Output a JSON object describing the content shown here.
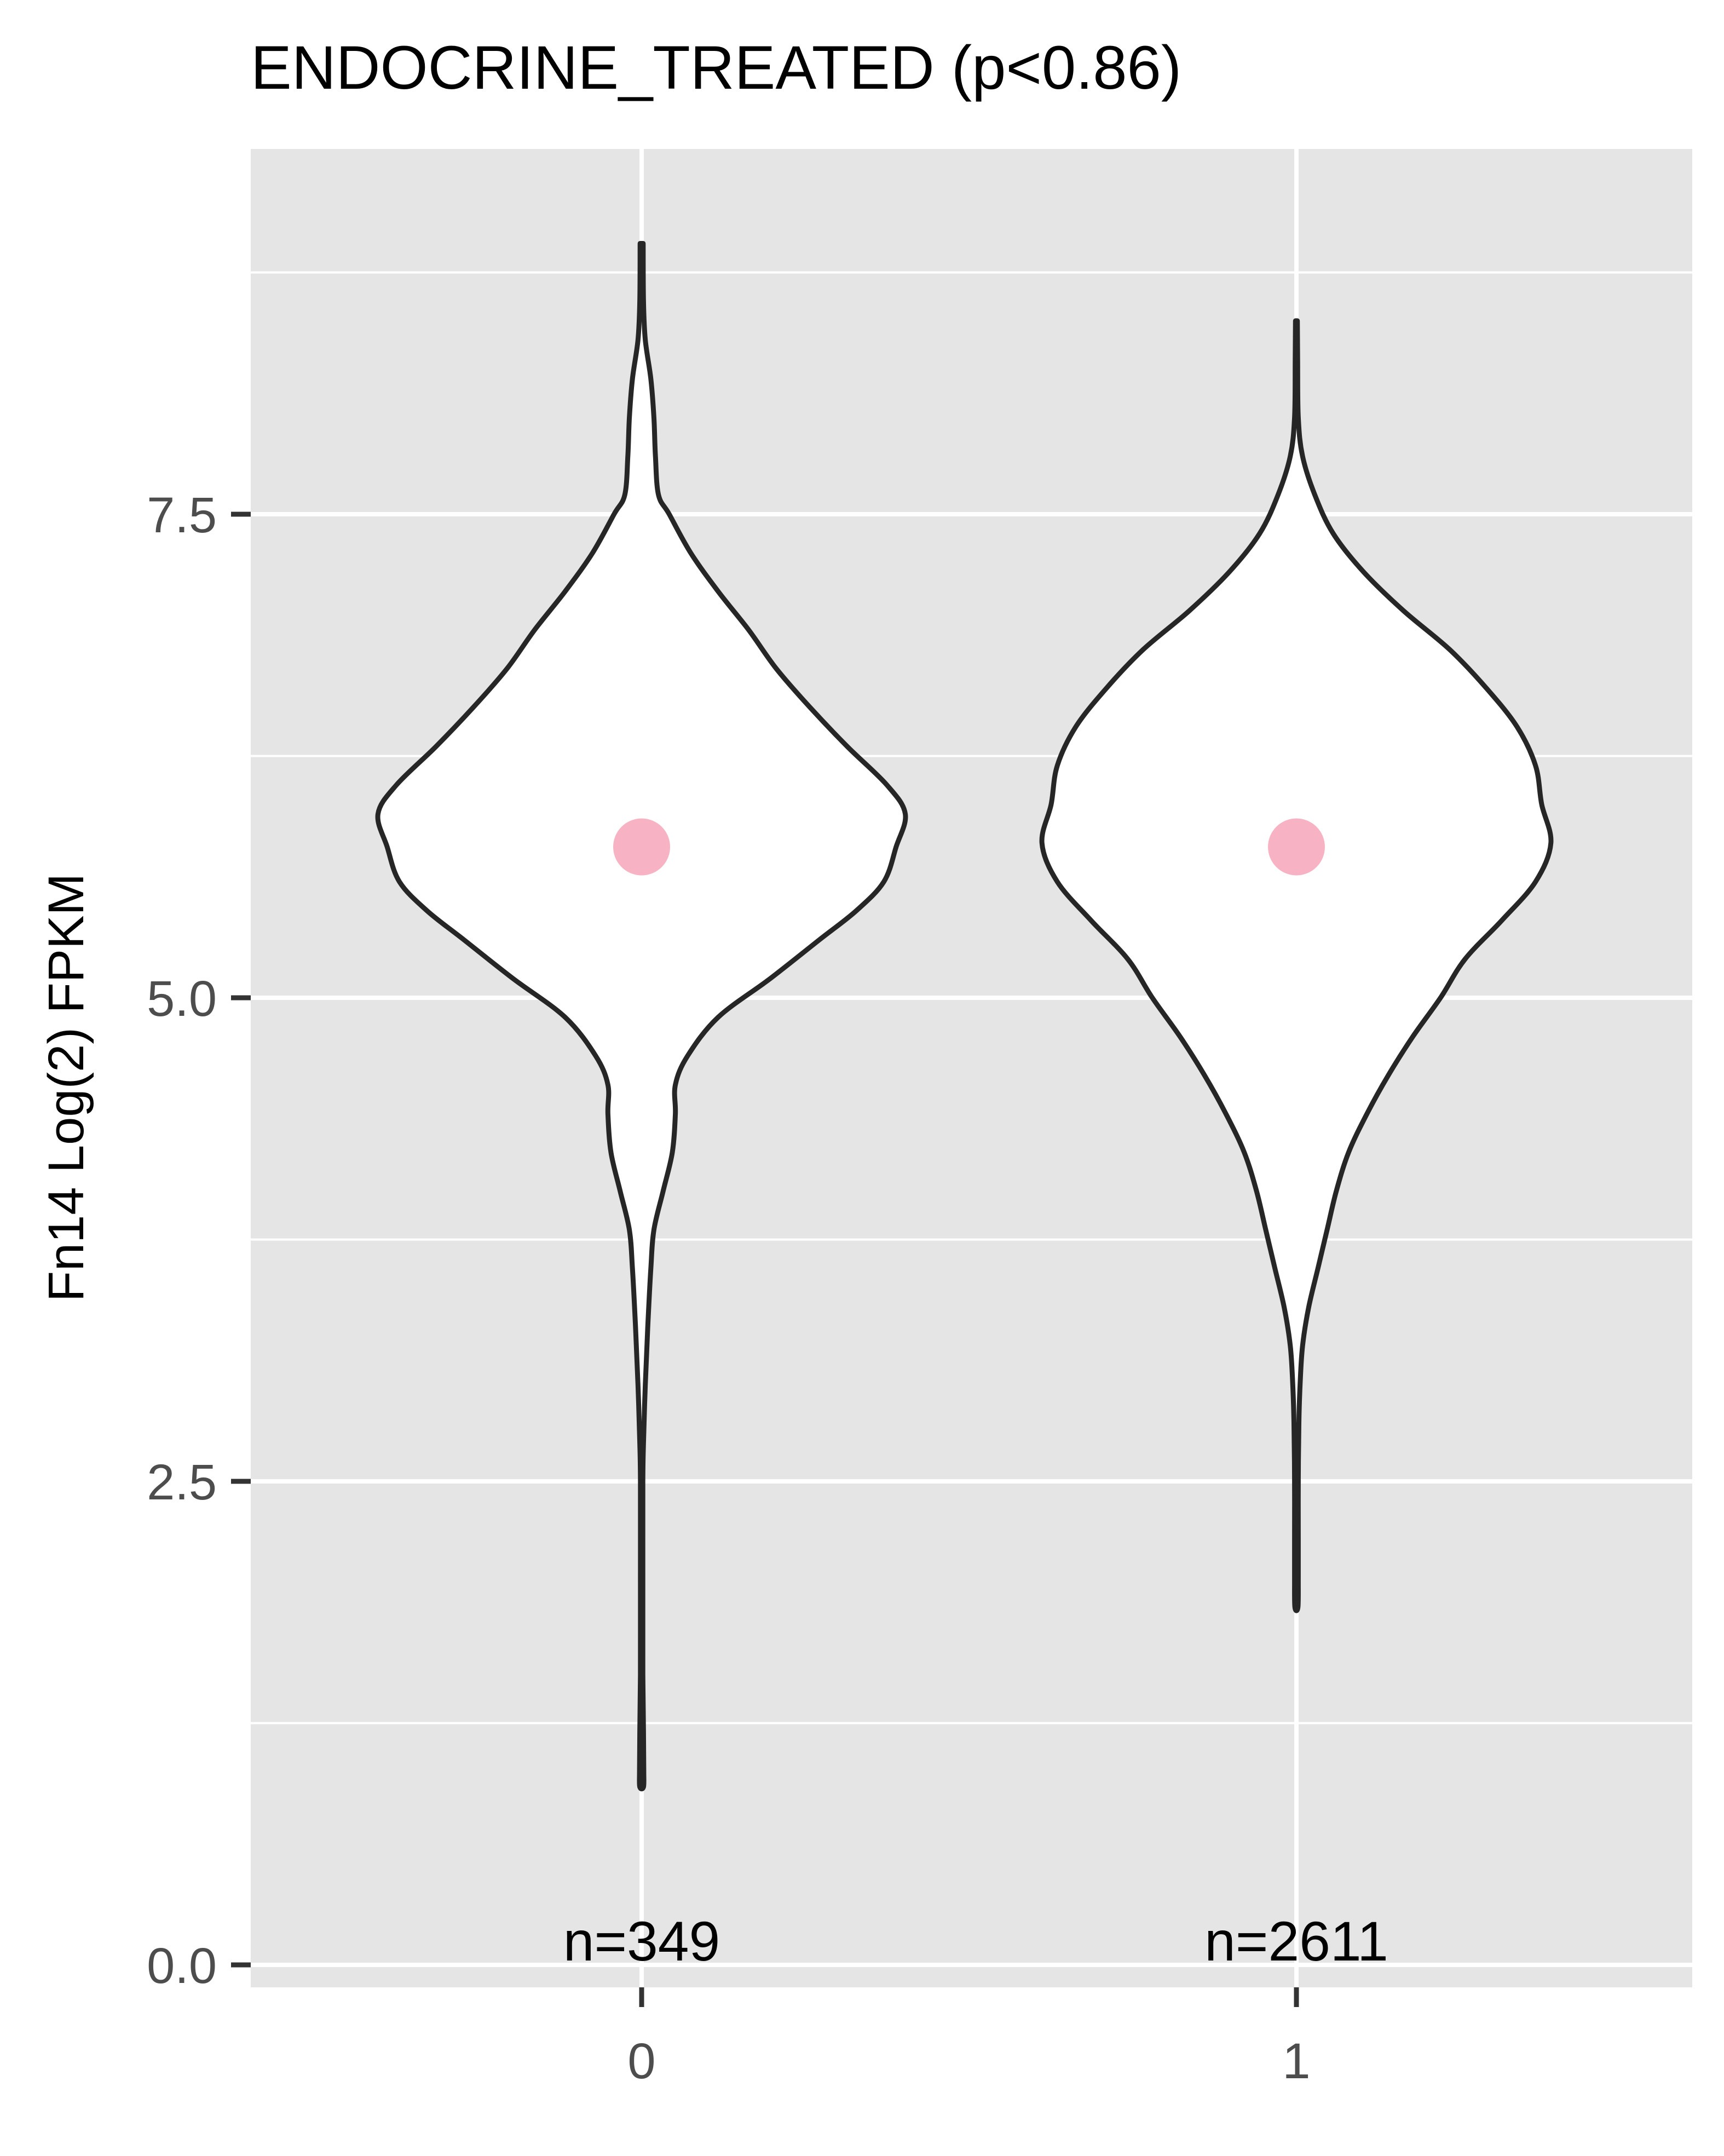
{
  "chart_data": {
    "type": "violin",
    "title": "ENDOCRINE_TREATED (p<0.86)",
    "xlabel": "",
    "ylabel": "Fn14 Log(2) FPKM",
    "categories": [
      "0",
      "1"
    ],
    "ylim": [
      -0.6,
      9.3
    ],
    "y_ticks": [
      0.0,
      2.5,
      5.0,
      7.5
    ],
    "y_tick_labels": [
      "0.0",
      "2.5",
      "5.0",
      "7.5"
    ],
    "grid": true,
    "legend": "none",
    "colors": {
      "panel_background": "#e5e5e5",
      "grid": "#ffffff",
      "violin_fill": "#ffffff",
      "violin_outline": "#262626",
      "median_point": "#f7b3c3"
    },
    "series": [
      {
        "category": "0",
        "n_label": "n=349",
        "median": 5.78,
        "min": 0.92,
        "max": 8.9,
        "density": [
          [
            8.9,
            0.005
          ],
          [
            8.6,
            0.006
          ],
          [
            8.4,
            0.012
          ],
          [
            8.2,
            0.03
          ],
          [
            8.0,
            0.04
          ],
          [
            7.8,
            0.045
          ],
          [
            7.6,
            0.055
          ],
          [
            7.5,
            0.09
          ],
          [
            7.3,
            0.16
          ],
          [
            7.1,
            0.25
          ],
          [
            6.9,
            0.35
          ],
          [
            6.7,
            0.44
          ],
          [
            6.5,
            0.55
          ],
          [
            6.3,
            0.67
          ],
          [
            6.1,
            0.8
          ],
          [
            5.95,
            0.86
          ],
          [
            5.78,
            0.83
          ],
          [
            5.6,
            0.79
          ],
          [
            5.45,
            0.7
          ],
          [
            5.3,
            0.58
          ],
          [
            5.1,
            0.42
          ],
          [
            4.9,
            0.25
          ],
          [
            4.7,
            0.15
          ],
          [
            4.55,
            0.11
          ],
          [
            4.4,
            0.11
          ],
          [
            4.2,
            0.1
          ],
          [
            4.0,
            0.07
          ],
          [
            3.8,
            0.04
          ],
          [
            3.6,
            0.03
          ],
          [
            3.3,
            0.02
          ],
          [
            3.0,
            0.012
          ],
          [
            2.7,
            0.006
          ],
          [
            2.5,
            0.004
          ],
          [
            2.0,
            0.004
          ],
          [
            1.5,
            0.004
          ],
          [
            1.2,
            0.006
          ],
          [
            1.0,
            0.007
          ],
          [
            0.92,
            0.006
          ]
        ]
      },
      {
        "category": "1",
        "n_label": "n=2611",
        "median": 5.78,
        "min": 1.85,
        "max": 8.5,
        "density": [
          [
            8.5,
            0.003
          ],
          [
            8.3,
            0.004
          ],
          [
            8.0,
            0.006
          ],
          [
            7.8,
            0.02
          ],
          [
            7.6,
            0.06
          ],
          [
            7.4,
            0.12
          ],
          [
            7.2,
            0.22
          ],
          [
            7.0,
            0.35
          ],
          [
            6.8,
            0.5
          ],
          [
            6.6,
            0.62
          ],
          [
            6.4,
            0.72
          ],
          [
            6.2,
            0.78
          ],
          [
            6.0,
            0.8
          ],
          [
            5.8,
            0.83
          ],
          [
            5.6,
            0.78
          ],
          [
            5.4,
            0.67
          ],
          [
            5.2,
            0.55
          ],
          [
            5.0,
            0.47
          ],
          [
            4.8,
            0.38
          ],
          [
            4.6,
            0.3
          ],
          [
            4.4,
            0.23
          ],
          [
            4.2,
            0.17
          ],
          [
            4.0,
            0.13
          ],
          [
            3.8,
            0.1
          ],
          [
            3.6,
            0.07
          ],
          [
            3.4,
            0.04
          ],
          [
            3.2,
            0.02
          ],
          [
            3.0,
            0.012
          ],
          [
            2.8,
            0.008
          ],
          [
            2.5,
            0.006
          ],
          [
            2.2,
            0.006
          ],
          [
            2.0,
            0.006
          ],
          [
            1.85,
            0.005
          ]
        ]
      }
    ]
  }
}
